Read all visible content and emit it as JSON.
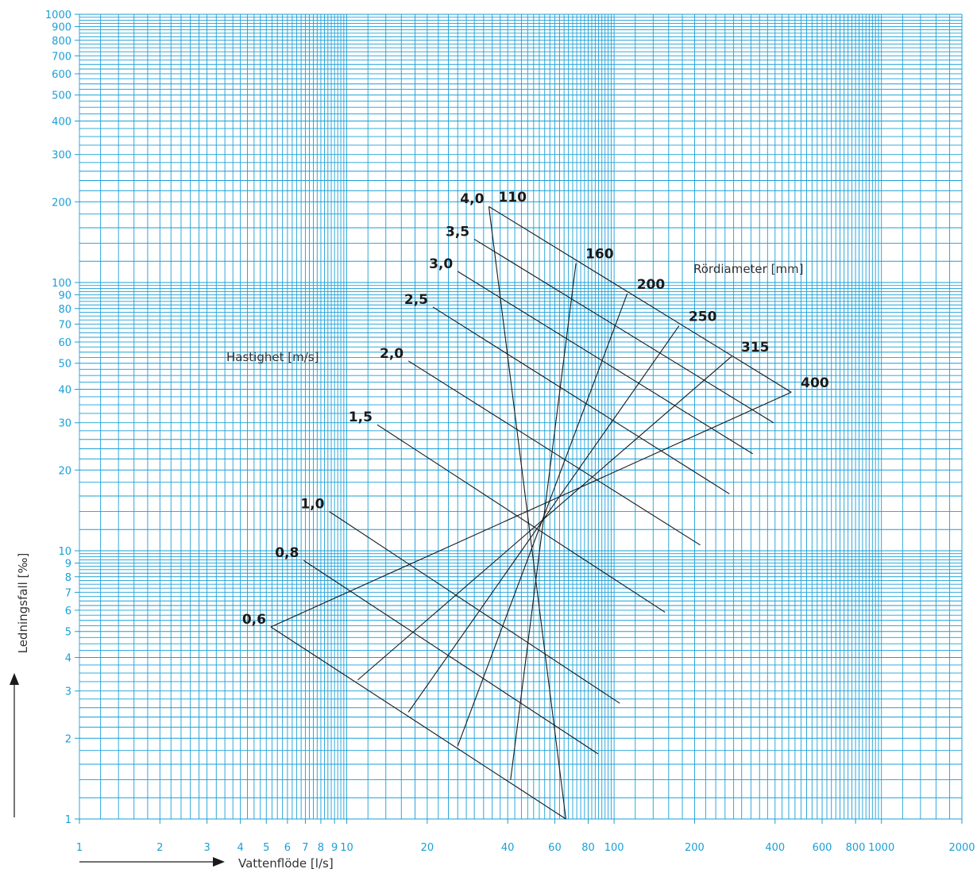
{
  "chart_data": {
    "type": "line",
    "chart_kind": "pipe flow nomogram",
    "xlabel": "Vattenflöde [l/s]",
    "ylabel": "Ledningsfall [‰]",
    "x_scale": "log",
    "y_scale": "log",
    "xlim": [
      1,
      2000
    ],
    "ylim": [
      1,
      1000
    ],
    "grid": true,
    "x_ticks": [
      {
        "value": 1,
        "label": "1"
      },
      {
        "value": 2,
        "label": "2"
      },
      {
        "value": 3,
        "label": "3"
      },
      {
        "value": 4,
        "label": "4"
      },
      {
        "value": 5,
        "label": "5"
      },
      {
        "value": 6,
        "label": "6"
      },
      {
        "value": 7,
        "label": "7"
      },
      {
        "value": 8,
        "label": "8"
      },
      {
        "value": 9,
        "label": "9"
      },
      {
        "value": 10,
        "label": "10"
      },
      {
        "value": 20,
        "label": "20"
      },
      {
        "value": 40,
        "label": "40"
      },
      {
        "value": 60,
        "label": "60"
      },
      {
        "value": 80,
        "label": "80"
      },
      {
        "value": 100,
        "label": "100"
      },
      {
        "value": 200,
        "label": "200"
      },
      {
        "value": 400,
        "label": "400"
      },
      {
        "value": 600,
        "label": "600"
      },
      {
        "value": 800,
        "label": "800"
      },
      {
        "value": 1000,
        "label": "1000"
      },
      {
        "value": 2000,
        "label": "2000"
      }
    ],
    "y_ticks": [
      {
        "value": 1,
        "label": "1"
      },
      {
        "value": 2,
        "label": "2"
      },
      {
        "value": 3,
        "label": "3"
      },
      {
        "value": 4,
        "label": "4"
      },
      {
        "value": 5,
        "label": "5"
      },
      {
        "value": 6,
        "label": "6"
      },
      {
        "value": 7,
        "label": "7"
      },
      {
        "value": 8,
        "label": "8"
      },
      {
        "value": 9,
        "label": "9"
      },
      {
        "value": 10,
        "label": "10"
      },
      {
        "value": 20,
        "label": "20"
      },
      {
        "value": 30,
        "label": "30"
      },
      {
        "value": 40,
        "label": "40"
      },
      {
        "value": 50,
        "label": "50"
      },
      {
        "value": 60,
        "label": "60"
      },
      {
        "value": 70,
        "label": "70"
      },
      {
        "value": 80,
        "label": "80"
      },
      {
        "value": 90,
        "label": "90"
      },
      {
        "value": 100,
        "label": "100"
      },
      {
        "value": 200,
        "label": "200"
      },
      {
        "value": 300,
        "label": "300"
      },
      {
        "value": 400,
        "label": "400"
      },
      {
        "value": 500,
        "label": "500"
      },
      {
        "value": 600,
        "label": "600"
      },
      {
        "value": 700,
        "label": "700"
      },
      {
        "value": 800,
        "label": "800"
      },
      {
        "value": 900,
        "label": "900"
      },
      {
        "value": 1000,
        "label": "1000"
      }
    ],
    "diameter_title": "Rördiameter [mm]",
    "velocity_title": "Hastighet [m/s]",
    "diameter_lines": [
      {
        "label": "110",
        "points": [
          [
            34,
            192
          ],
          [
            66,
            1
          ]
        ]
      },
      {
        "label": "160",
        "points": [
          [
            72,
            118
          ],
          [
            41,
            1.4
          ]
        ]
      },
      {
        "label": "200",
        "points": [
          [
            112,
            91
          ],
          [
            26,
            1.87
          ]
        ]
      },
      {
        "label": "250",
        "points": [
          [
            175,
            69
          ],
          [
            17,
            2.5
          ]
        ]
      },
      {
        "label": "315",
        "points": [
          [
            275,
            53
          ],
          [
            11,
            3.3
          ]
        ]
      },
      {
        "label": "400",
        "points": [
          [
            460,
            39
          ],
          [
            5.2,
            5.2
          ]
        ]
      }
    ],
    "velocity_lines": [
      {
        "label": "4,0",
        "points": [
          [
            34,
            192
          ],
          [
            460,
            39
          ]
        ]
      },
      {
        "label": "3,5",
        "points": [
          [
            30,
            145
          ],
          [
            395,
            30
          ]
        ]
      },
      {
        "label": "3,0",
        "points": [
          [
            26,
            110
          ],
          [
            330,
            23
          ]
        ]
      },
      {
        "label": "2,5",
        "points": [
          [
            21,
            81
          ],
          [
            270,
            16.3
          ]
        ]
      },
      {
        "label": "2,0",
        "points": [
          [
            17,
            51
          ],
          [
            210,
            10.5
          ]
        ]
      },
      {
        "label": "1,5",
        "points": [
          [
            13,
            29.5
          ],
          [
            155,
            5.9
          ]
        ]
      },
      {
        "label": "1,0",
        "points": [
          [
            8.6,
            14
          ],
          [
            105,
            2.7
          ]
        ]
      },
      {
        "label": "0,8",
        "points": [
          [
            6.9,
            9.2
          ],
          [
            87,
            1.75
          ]
        ]
      },
      {
        "label": "0,6",
        "points": [
          [
            5.2,
            5.2
          ],
          [
            66,
            1
          ]
        ]
      }
    ]
  },
  "colors": {
    "grid": "#1a9fd6",
    "tick_label": "#1a9fd6",
    "nomogram": "#1a1a1a",
    "axis_title": "#333333"
  }
}
